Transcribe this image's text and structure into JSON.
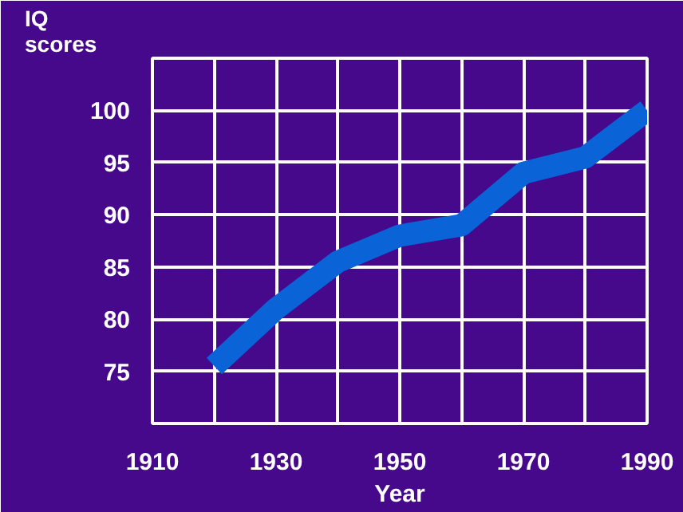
{
  "chart_data": {
    "type": "line",
    "xlabel": "Year",
    "ylabel": "IQ\nscores",
    "x": [
      1920,
      1930,
      1940,
      1950,
      1960,
      1970,
      1980,
      1990
    ],
    "series": [
      {
        "color": "#0a64d8",
        "values": [
          75.5,
          81,
          85.5,
          88,
          89,
          94,
          95.5,
          100
        ]
      }
    ],
    "xlim": [
      1910,
      1990
    ],
    "ylim": [
      70,
      105
    ],
    "xticks": [
      1910,
      {
        "value": 1920,
        "label": null
      },
      1930,
      {
        "value": 1940,
        "label": null
      },
      1950,
      {
        "value": 1960,
        "label": null
      },
      1970,
      {
        "value": 1980,
        "label": null
      },
      1990
    ],
    "yticks": [
      {
        "value": 70,
        "label": null
      },
      75,
      80,
      85,
      90,
      95,
      100,
      {
        "value": 105,
        "label": null
      }
    ],
    "grid": true,
    "marker": "none",
    "line_style": "solid"
  }
}
